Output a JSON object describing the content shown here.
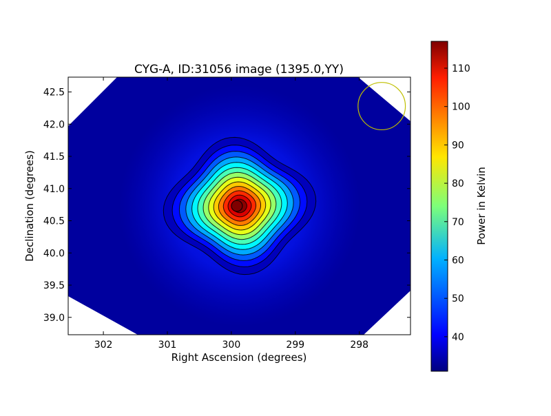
{
  "chart_data": {
    "type": "heatmap",
    "title": "CYG-A, ID:31056 image (1395.0,YY)",
    "xlabel": "Right Ascension (degrees)",
    "ylabel": "Declination (degrees)",
    "xlim": [
      302.55,
      297.2
    ],
    "ylim": [
      38.73,
      42.73
    ],
    "x_ticks": [
      302,
      301,
      300,
      299,
      298
    ],
    "x_tick_labels": [
      "302",
      "301",
      "300",
      "299",
      "298"
    ],
    "y_ticks": [
      39.0,
      39.5,
      40.0,
      40.5,
      41.0,
      41.5,
      42.0,
      42.5
    ],
    "y_tick_labels": [
      "39.0",
      "39.5",
      "40.0",
      "40.5",
      "41.0",
      "41.5",
      "42.0",
      "42.5"
    ],
    "source": {
      "name": "CYG-A",
      "ra": 299.87,
      "dec": 40.73,
      "peak_power": 116,
      "background_power": 31,
      "halo_power": 36
    },
    "contour_count": 13,
    "beam": {
      "ra": 297.65,
      "dec": 42.28,
      "radius_deg": 0.37,
      "color": "#bfbf00"
    },
    "colorbar": {
      "label": "Power in Kelvin",
      "min": 31,
      "max": 117,
      "ticks": [
        40,
        50,
        60,
        70,
        80,
        90,
        100,
        110
      ],
      "tick_labels": [
        "40",
        "50",
        "60",
        "70",
        "80",
        "90",
        "100",
        "110"
      ]
    }
  }
}
